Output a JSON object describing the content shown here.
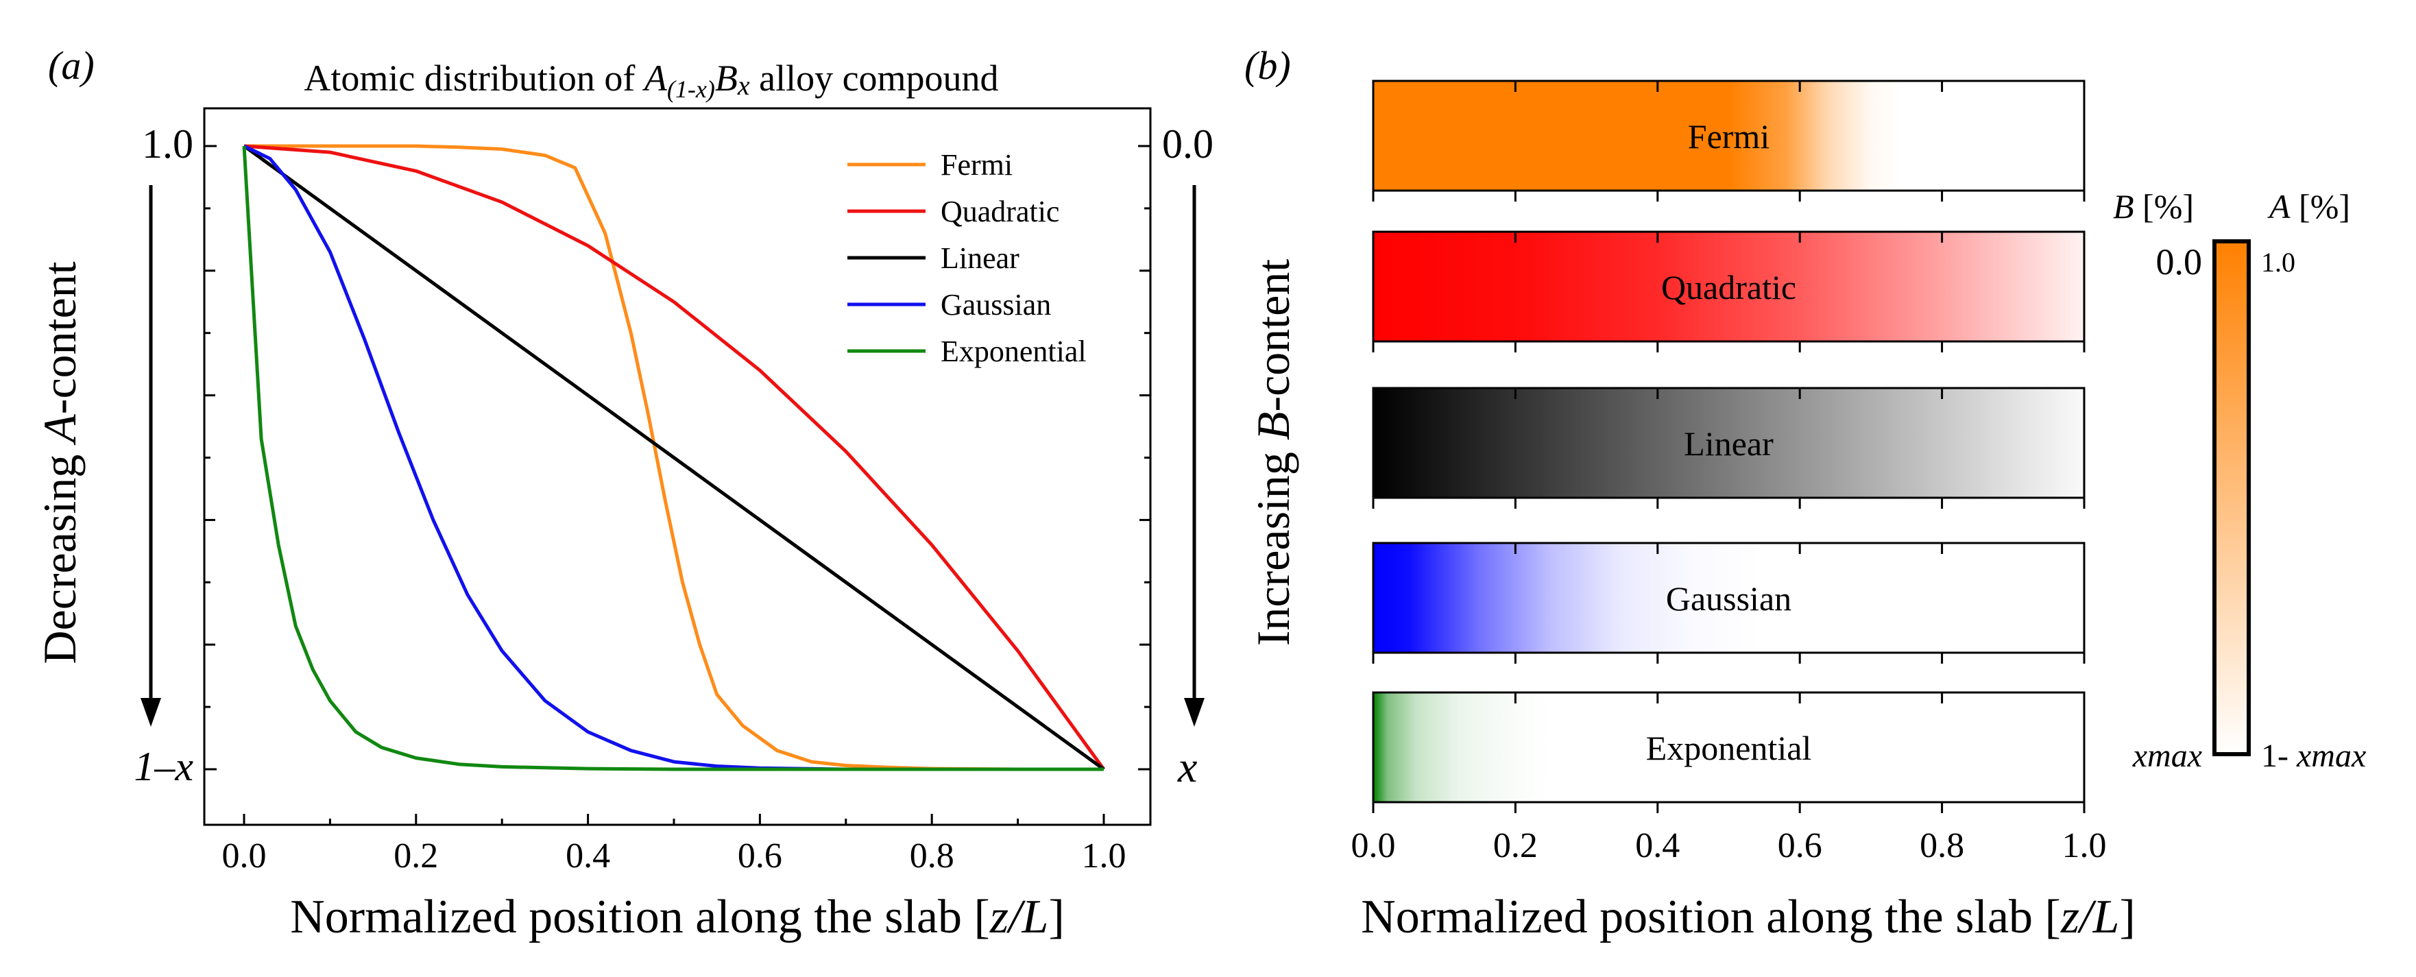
{
  "panel_a": {
    "label": "(a)",
    "title_prefix": "Atomic distribution of ",
    "title_A": "A",
    "title_sub": "(1-x)",
    "title_B": "B",
    "title_x": "x",
    "title_suffix": " alloy compound",
    "ylabel_prefix": "Decreasing ",
    "ylabel_italic": "A",
    "ylabel_suffix": "-content",
    "left_top_tick": "1.0",
    "left_bottom_tick": "1–x",
    "right_top_tick": "0.0",
    "right_bottom_tick": "x",
    "xlabel_prefix": "Normalized position along the slab [",
    "xlabel_italic": "z/L",
    "xlabel_suffix": "]"
  },
  "panel_b": {
    "label": "(b)",
    "ylabel_prefix": "Increasing ",
    "ylabel_italic": "B",
    "ylabel_suffix": "-content",
    "xlabel_prefix": "Normalized position along the slab [",
    "xlabel_italic": "z/L",
    "xlabel_suffix": "]",
    "colorbar": {
      "left_title_italic": "B",
      "left_title_unit": " [%]",
      "right_title_italic": "A",
      "right_title_unit": " [%]",
      "left_top": "0.0",
      "right_top": "1.0",
      "left_bottom": "xmax",
      "right_bottom_prefix": "1- ",
      "right_bottom_italic": "xmax",
      "color": "#ff8000"
    }
  },
  "chart_data": [
    {
      "type": "line",
      "xlim": [
        0,
        1
      ],
      "ylim": [
        0,
        1
      ],
      "x_ticks": [
        "0.0",
        "0.2",
        "0.4",
        "0.6",
        "0.8",
        "1.0"
      ],
      "legend_position": "top-right",
      "series": [
        {
          "name": "Fermi",
          "color": "#ff8c1a",
          "x": [
            0,
            0.05,
            0.1,
            0.15,
            0.2,
            0.25,
            0.3,
            0.35,
            0.385,
            0.42,
            0.45,
            0.47,
            0.49,
            0.51,
            0.53,
            0.55,
            0.58,
            0.62,
            0.66,
            0.7,
            0.75,
            0.8,
            0.9,
            1.0
          ],
          "y": [
            1.0,
            1.0,
            1.0,
            1.0,
            1.0,
            0.998,
            0.995,
            0.985,
            0.965,
            0.86,
            0.7,
            0.57,
            0.43,
            0.3,
            0.2,
            0.12,
            0.07,
            0.03,
            0.012,
            0.006,
            0.003,
            0.001,
            0.0,
            0.0
          ]
        },
        {
          "name": "Quadratic",
          "color": "#ee1111",
          "x": [
            0,
            0.1,
            0.2,
            0.3,
            0.4,
            0.5,
            0.6,
            0.7,
            0.8,
            0.9,
            1.0
          ],
          "y": [
            1.0,
            0.99,
            0.96,
            0.91,
            0.84,
            0.75,
            0.64,
            0.51,
            0.36,
            0.19,
            0.0
          ]
        },
        {
          "name": "Linear",
          "color": "#000000",
          "x": [
            0,
            1.0
          ],
          "y": [
            1.0,
            0.0
          ]
        },
        {
          "name": "Gaussian",
          "color": "#1111ee",
          "x": [
            0,
            0.03,
            0.06,
            0.1,
            0.14,
            0.18,
            0.22,
            0.26,
            0.3,
            0.35,
            0.4,
            0.45,
            0.5,
            0.55,
            0.6,
            0.7,
            0.8,
            0.9,
            1.0
          ],
          "y": [
            1.0,
            0.98,
            0.93,
            0.83,
            0.69,
            0.54,
            0.4,
            0.28,
            0.19,
            0.11,
            0.06,
            0.03,
            0.012,
            0.005,
            0.002,
            0.0,
            0.0,
            0.0,
            0.0
          ]
        },
        {
          "name": "Exponential",
          "color": "#118811",
          "x": [
            0,
            0.02,
            0.04,
            0.06,
            0.08,
            0.1,
            0.13,
            0.16,
            0.2,
            0.25,
            0.3,
            0.4,
            0.5,
            0.7,
            1.0
          ],
          "y": [
            1.0,
            0.53,
            0.36,
            0.23,
            0.16,
            0.11,
            0.06,
            0.035,
            0.018,
            0.008,
            0.004,
            0.001,
            0.0,
            0.0,
            0.0
          ]
        }
      ]
    },
    {
      "type": "heatmap",
      "xlim": [
        0,
        1
      ],
      "x_ticks": [
        "0.0",
        "0.2",
        "0.4",
        "0.6",
        "0.8",
        "1.0"
      ],
      "bars": [
        {
          "name": "Fermi",
          "color": "#ff8000",
          "stops": [
            [
              0,
              1
            ],
            [
              0.5,
              1
            ],
            [
              0.58,
              0.75
            ],
            [
              0.64,
              0.3
            ],
            [
              0.7,
              0.05
            ],
            [
              0.74,
              0
            ]
          ]
        },
        {
          "name": "Quadratic",
          "color": "#ff0000",
          "stops": [
            [
              0,
              1
            ],
            [
              0.2,
              0.96
            ],
            [
              0.4,
              0.84
            ],
            [
              0.6,
              0.64
            ],
            [
              0.8,
              0.36
            ],
            [
              1,
              0.05
            ]
          ]
        },
        {
          "name": "Linear",
          "color": "#000000",
          "stops": [
            [
              0,
              1
            ],
            [
              1,
              0.02
            ]
          ]
        },
        {
          "name": "Gaussian",
          "color": "#0000ff",
          "stops": [
            [
              0,
              1
            ],
            [
              0.05,
              0.95
            ],
            [
              0.15,
              0.55
            ],
            [
              0.25,
              0.25
            ],
            [
              0.35,
              0.08
            ],
            [
              0.45,
              0.02
            ],
            [
              0.55,
              0
            ]
          ]
        },
        {
          "name": "Exponential",
          "color": "#008000",
          "stops": [
            [
              0,
              1
            ],
            [
              0.02,
              0.5
            ],
            [
              0.06,
              0.22
            ],
            [
              0.12,
              0.08
            ],
            [
              0.2,
              0.02
            ],
            [
              0.25,
              0
            ]
          ]
        }
      ]
    }
  ]
}
